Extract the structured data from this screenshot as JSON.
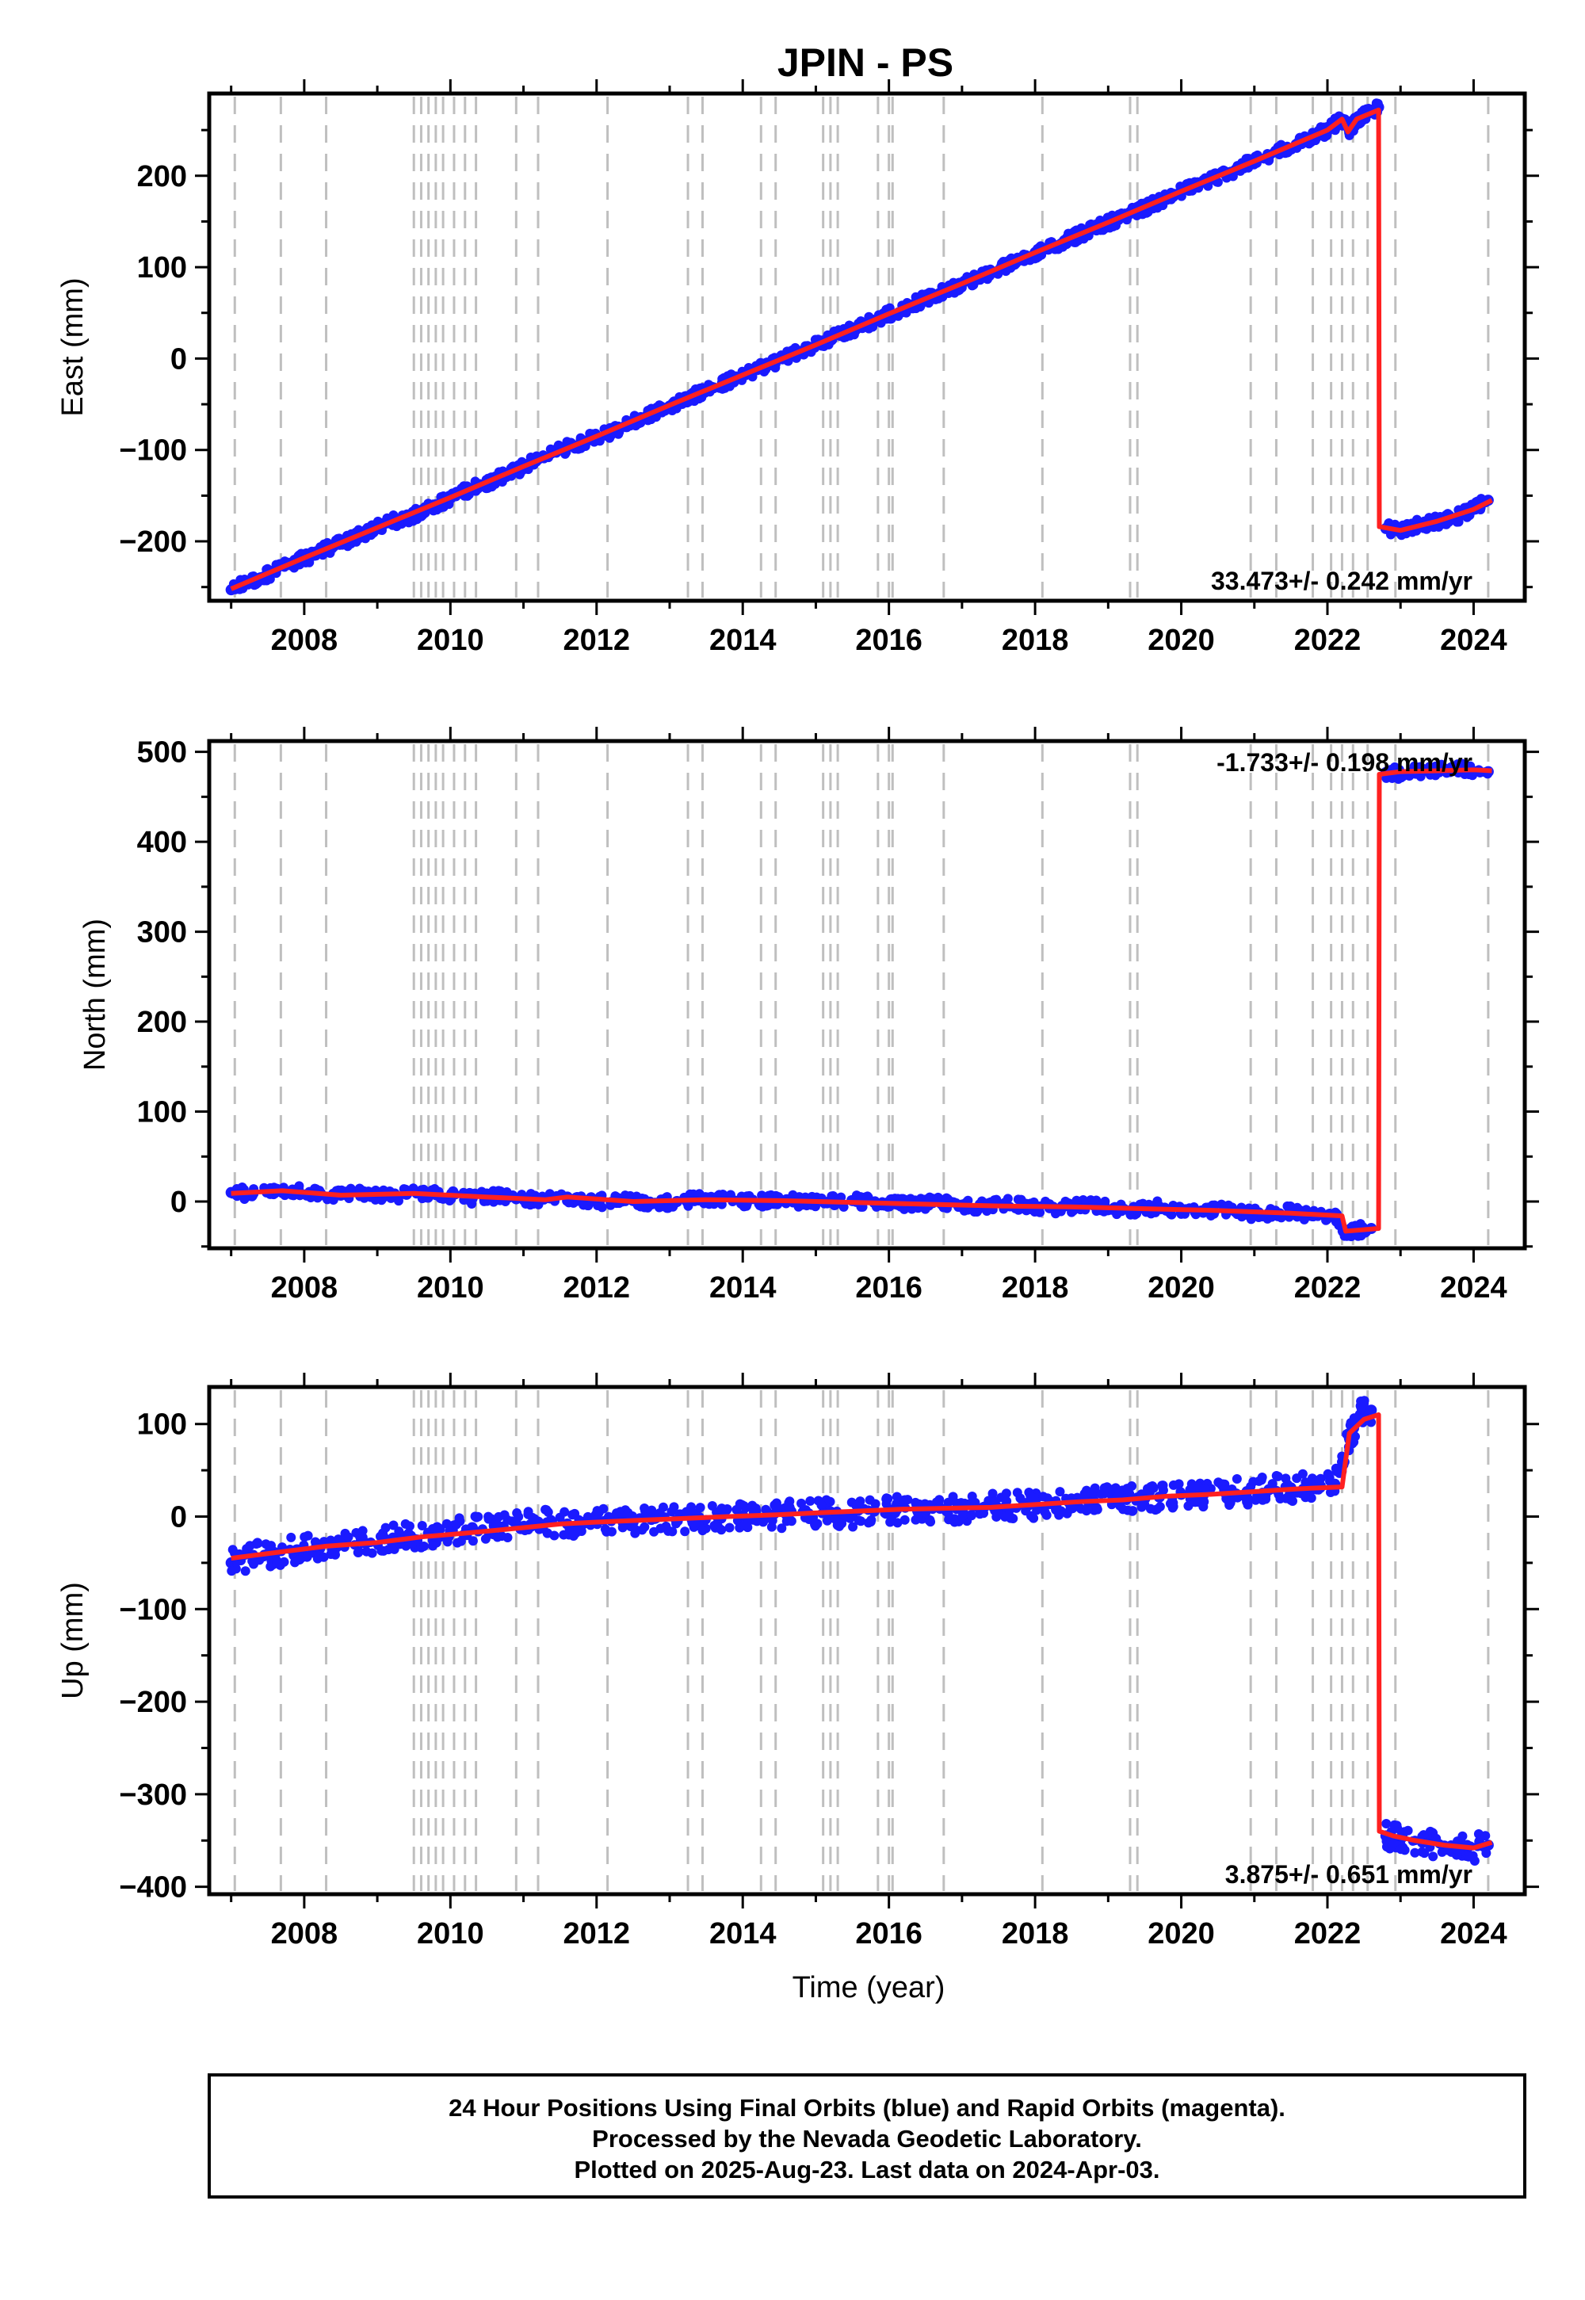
{
  "figure": {
    "title": "JPIN - PS",
    "footer_lines": [
      "24 Hour Positions Using Final Orbits (blue) and Rapid Orbits (magenta).",
      "Processed by the Nevada Geodetic Laboratory.",
      "Plotted on 2025-Aug-23. Last data on 2024-Apr-03."
    ]
  },
  "colors": {
    "data_points": "#1a1aff",
    "model_line": "#ff2020",
    "event_lines": "#bfbfbf",
    "frame": "#000000"
  },
  "chart_data": [
    {
      "type": "scatter",
      "ylabel": "East (mm)",
      "xlabel": "",
      "xlim": [
        2006.7,
        2024.7
      ],
      "ylim": [
        -265,
        290
      ],
      "x_ticks": [
        2008,
        2010,
        2012,
        2014,
        2016,
        2018,
        2020,
        2022,
        2024
      ],
      "y_ticks": [
        -200,
        -100,
        0,
        100,
        200
      ],
      "rate_label": "33.473+/- 0.242 mm/yr",
      "rate_position": "bottom-right",
      "event_lines": [
        2007.05,
        2007.68,
        2008.3,
        2009.5,
        2009.6,
        2009.7,
        2009.8,
        2009.9,
        2010.05,
        2010.2,
        2010.35,
        2010.9,
        2011.2,
        2012.15,
        2013.25,
        2013.45,
        2014.25,
        2014.45,
        2015.1,
        2015.2,
        2015.3,
        2015.85,
        2016.0,
        2016.05,
        2016.75,
        2018.1,
        2019.3,
        2019.4,
        2020.95,
        2021.3,
        2021.8,
        2022.05,
        2022.2,
        2022.35,
        2022.55,
        2022.93,
        2024.2
      ],
      "model_line": {
        "x": [
          2007.0,
          2008.0,
          2009.0,
          2010.0,
          2011.0,
          2012.0,
          2013.0,
          2014.0,
          2015.0,
          2016.0,
          2017.0,
          2018.0,
          2019.0,
          2020.0,
          2021.0,
          2022.0,
          2022.2,
          2022.28,
          2022.4,
          2022.7,
          2022.71,
          2023.0,
          2023.5,
          2024.0,
          2024.25
        ],
        "y": [
          -252,
          -218,
          -185,
          -152,
          -118,
          -85,
          -51,
          -18,
          15,
          49,
          82,
          116,
          149,
          183,
          216,
          250,
          262,
          248,
          262,
          272,
          -184,
          -188,
          -178,
          -165,
          -155
        ]
      },
      "data_points": {
        "x": [
          2007.0,
          2007.2,
          2007.4,
          2007.6,
          2007.8,
          2008.0,
          2008.2,
          2008.4,
          2008.6,
          2008.8,
          2009.0,
          2009.2,
          2009.4,
          2009.6,
          2009.8,
          2010.0,
          2010.2,
          2010.4,
          2010.6,
          2010.8,
          2011.0,
          2011.2,
          2011.6,
          2011.8,
          2012.0,
          2012.2,
          2012.4,
          2012.6,
          2012.8,
          2013.0,
          2013.2,
          2013.4,
          2013.6,
          2013.8,
          2014.0,
          2014.2,
          2014.4,
          2014.6,
          2014.8,
          2015.0,
          2015.2,
          2015.4,
          2015.6,
          2015.8,
          2016.0,
          2016.2,
          2016.4,
          2016.6,
          2016.8,
          2017.0,
          2017.2,
          2017.4,
          2017.6,
          2017.8,
          2018.0,
          2018.2,
          2018.4,
          2018.6,
          2018.8,
          2019.0,
          2019.2,
          2019.4,
          2019.6,
          2019.8,
          2020.0,
          2020.2,
          2020.4,
          2020.6,
          2020.8,
          2021.0,
          2021.2,
          2021.4,
          2021.6,
          2021.8,
          2022.0,
          2022.2,
          2022.3,
          2022.4,
          2022.55,
          2022.7,
          2022.8,
          2023.0,
          2023.2,
          2023.4,
          2023.6,
          2023.8,
          2024.0,
          2024.2
        ],
        "y": [
          -253,
          -246,
          -240,
          -232,
          -224,
          -219,
          -212,
          -205,
          -199,
          -192,
          -185,
          -178,
          -175,
          -168,
          -160,
          -153,
          -145,
          -138,
          -133,
          -125,
          -119,
          -110,
          -97,
          -92,
          -85,
          -80,
          -73,
          -65,
          -58,
          -52,
          -45,
          -38,
          -32,
          -25,
          -18,
          -12,
          -5,
          2,
          8,
          15,
          22,
          29,
          35,
          42,
          49,
          55,
          62,
          68,
          75,
          82,
          88,
          95,
          102,
          108,
          116,
          122,
          129,
          135,
          142,
          149,
          155,
          162,
          168,
          176,
          183,
          189,
          196,
          202,
          209,
          216,
          222,
          229,
          236,
          243,
          250,
          262,
          250,
          260,
          268,
          275,
          -186,
          -187,
          -183,
          -180,
          -177,
          -172,
          -165,
          -155
        ]
      }
    },
    {
      "type": "scatter",
      "ylabel": "North (mm)",
      "xlabel": "",
      "xlim": [
        2006.7,
        2024.7
      ],
      "ylim": [
        -52,
        512
      ],
      "x_ticks": [
        2008,
        2010,
        2012,
        2014,
        2016,
        2018,
        2020,
        2022,
        2024
      ],
      "y_ticks": [
        0,
        100,
        200,
        300,
        400,
        500
      ],
      "rate_label": "-1.733+/- 0.198 mm/yr",
      "rate_position": "top-right",
      "event_lines": [
        2007.05,
        2007.68,
        2008.3,
        2009.5,
        2009.6,
        2009.7,
        2009.8,
        2009.9,
        2010.05,
        2010.2,
        2010.35,
        2010.9,
        2011.2,
        2012.15,
        2013.25,
        2013.45,
        2014.25,
        2014.45,
        2015.1,
        2015.2,
        2015.3,
        2015.85,
        2016.0,
        2016.05,
        2016.75,
        2018.1,
        2019.3,
        2019.4,
        2020.95,
        2021.3,
        2021.8,
        2022.05,
        2022.2,
        2022.35,
        2022.55,
        2022.93,
        2024.2
      ],
      "model_line": {
        "x": [
          2007.0,
          2007.7,
          2008.5,
          2009.5,
          2010.5,
          2011.3,
          2011.6,
          2012.5,
          2013.5,
          2014.5,
          2015.5,
          2016.5,
          2017.5,
          2018.5,
          2019.5,
          2020.5,
          2021.5,
          2022.2,
          2022.25,
          2022.7,
          2022.71,
          2023.0,
          2023.5,
          2024.0,
          2024.25
        ],
        "y": [
          9,
          12,
          7,
          9,
          5,
          2,
          5,
          0,
          2,
          1,
          -1,
          -3,
          -5,
          -6,
          -8,
          -10,
          -13,
          -16,
          -33,
          -30,
          475,
          478,
          479,
          480,
          479
        ]
      },
      "data_points": {
        "x": [
          2007.0,
          2007.3,
          2007.6,
          2007.9,
          2008.2,
          2008.5,
          2008.8,
          2009.1,
          2009.4,
          2009.7,
          2010.0,
          2010.3,
          2010.6,
          2010.9,
          2011.2,
          2011.6,
          2011.9,
          2012.2,
          2012.5,
          2012.8,
          2013.1,
          2013.4,
          2013.7,
          2014.0,
          2014.3,
          2014.6,
          2014.9,
          2015.2,
          2015.5,
          2015.8,
          2016.1,
          2016.4,
          2016.7,
          2017.0,
          2017.3,
          2017.6,
          2017.9,
          2018.2,
          2018.5,
          2018.8,
          2019.1,
          2019.4,
          2019.7,
          2020.0,
          2020.3,
          2020.6,
          2020.9,
          2021.2,
          2021.5,
          2021.8,
          2022.1,
          2022.25,
          2022.4,
          2022.6,
          2022.8,
          2023.0,
          2023.3,
          2023.6,
          2023.9,
          2024.2
        ],
        "y": [
          10,
          9,
          11,
          13,
          8,
          7,
          9,
          6,
          8,
          10,
          6,
          4,
          6,
          3,
          2,
          5,
          2,
          -1,
          1,
          -2,
          0,
          3,
          2,
          1,
          0,
          2,
          -1,
          0,
          1,
          -1,
          -2,
          -3,
          -1,
          -4,
          -6,
          -3,
          -5,
          -7,
          -6,
          -4,
          -8,
          -9,
          -6,
          -10,
          -12,
          -9,
          -14,
          -13,
          -11,
          -15,
          -16,
          -35,
          -32,
          -30,
          477,
          476,
          479,
          480,
          481,
          478
        ]
      }
    },
    {
      "type": "scatter",
      "ylabel": "Up (mm)",
      "xlabel": "Time (year)",
      "xlim": [
        2006.7,
        2024.7
      ],
      "ylim": [
        -408,
        140
      ],
      "x_ticks": [
        2008,
        2010,
        2012,
        2014,
        2016,
        2018,
        2020,
        2022,
        2024
      ],
      "y_ticks": [
        -400,
        -300,
        -200,
        -100,
        0,
        100
      ],
      "rate_label": "3.875+/- 0.651 mm/yr",
      "rate_position": "bottom-right",
      "event_lines": [
        2007.05,
        2007.68,
        2008.3,
        2009.5,
        2009.6,
        2009.7,
        2009.8,
        2009.9,
        2010.05,
        2010.2,
        2010.35,
        2010.9,
        2011.2,
        2012.15,
        2013.25,
        2013.45,
        2014.25,
        2014.45,
        2015.1,
        2015.2,
        2015.3,
        2015.85,
        2016.0,
        2016.05,
        2016.75,
        2018.1,
        2019.3,
        2019.4,
        2020.95,
        2021.3,
        2021.8,
        2022.05,
        2022.2,
        2022.35,
        2022.55,
        2022.93,
        2024.2
      ],
      "model_line": {
        "x": [
          2007.0,
          2007.7,
          2008.3,
          2009.0,
          2009.6,
          2010.2,
          2011.0,
          2011.5,
          2012.0,
          2012.6,
          2013.2,
          2013.8,
          2014.5,
          2015.0,
          2015.6,
          2016.2,
          2016.8,
          2017.4,
          2018.0,
          2018.6,
          2019.2,
          2019.8,
          2020.4,
          2021.0,
          2021.6,
          2022.2,
          2022.3,
          2022.5,
          2022.7,
          2022.71,
          2022.9,
          2023.2,
          2023.6,
          2024.0,
          2024.25
        ],
        "y": [
          -45,
          -38,
          -32,
          -28,
          -22,
          -18,
          -12,
          -8,
          -6,
          -4,
          -2,
          0,
          2,
          4,
          6,
          8,
          9,
          10,
          13,
          16,
          18,
          22,
          24,
          27,
          30,
          32,
          90,
          105,
          110,
          -340,
          -345,
          -350,
          -355,
          -358,
          -352
        ]
      },
      "data_points": {
        "x": [
          2007.0,
          2007.3,
          2007.6,
          2007.9,
          2008.2,
          2008.5,
          2008.8,
          2009.1,
          2009.4,
          2009.7,
          2010.0,
          2010.3,
          2010.6,
          2010.9,
          2011.2,
          2011.6,
          2011.9,
          2012.2,
          2012.5,
          2012.8,
          2013.1,
          2013.4,
          2013.7,
          2014.0,
          2014.3,
          2014.6,
          2014.9,
          2015.2,
          2015.5,
          2015.8,
          2016.1,
          2016.4,
          2016.7,
          2017.0,
          2017.3,
          2017.6,
          2017.9,
          2018.2,
          2018.5,
          2018.8,
          2019.1,
          2019.4,
          2019.7,
          2020.0,
          2020.3,
          2020.6,
          2020.9,
          2021.2,
          2021.5,
          2021.8,
          2022.1,
          2022.3,
          2022.45,
          2022.6,
          2022.8,
          2023.0,
          2023.3,
          2023.6,
          2023.9,
          2024.2
        ],
        "y": [
          -50,
          -42,
          -40,
          -36,
          -34,
          -30,
          -28,
          -24,
          -22,
          -18,
          -16,
          -12,
          -10,
          -8,
          -6,
          -8,
          -6,
          -4,
          -6,
          -2,
          -4,
          -1,
          0,
          1,
          -2,
          2,
          3,
          5,
          2,
          6,
          7,
          5,
          9,
          8,
          10,
          11,
          12,
          14,
          15,
          17,
          18,
          20,
          21,
          24,
          23,
          26,
          27,
          29,
          31,
          33,
          35,
          85,
          110,
          115,
          -345,
          -348,
          -352,
          -356,
          -360,
          -355
        ]
      }
    }
  ]
}
